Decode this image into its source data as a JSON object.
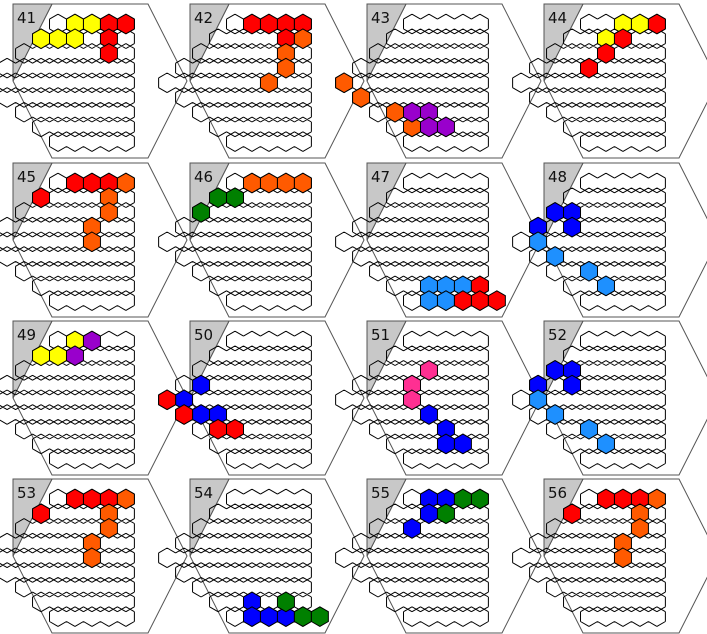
{
  "colors": {
    "red": "#ff0000",
    "orange": "#ff5a00",
    "yellow": "#ffff00",
    "purple": "#9900cc",
    "blue": "#0000ff",
    "lightblue": "#1e90ff",
    "green": "#008000",
    "pink": "#ff2f92",
    "corner": "#c8c8c8"
  },
  "puzzles": [
    {
      "number": "41",
      "pieces": [
        {
          "color": "yellow",
          "cells": [
            [
              0,
              1
            ],
            [
              0,
              2
            ],
            [
              1,
              0
            ],
            [
              1,
              1
            ],
            [
              1,
              2
            ]
          ]
        },
        {
          "color": "red",
          "cells": [
            [
              0,
              3
            ],
            [
              0,
              4
            ],
            [
              1,
              4
            ],
            [
              2,
              5
            ]
          ]
        }
      ]
    },
    {
      "number": "42",
      "pieces": [
        {
          "color": "red",
          "cells": [
            [
              0,
              1
            ],
            [
              0,
              2
            ],
            [
              0,
              3
            ],
            [
              0,
              4
            ],
            [
              1,
              4
            ]
          ]
        },
        {
          "color": "orange",
          "cells": [
            [
              1,
              5
            ],
            [
              2,
              5
            ],
            [
              3,
              6
            ],
            [
              4,
              6
            ]
          ]
        }
      ]
    },
    {
      "number": "43",
      "pieces": [
        {
          "color": "orange",
          "cells": [
            [
              4,
              0
            ],
            [
              5,
              0
            ],
            [
              6,
              1
            ],
            [
              7,
              1
            ]
          ]
        },
        {
          "color": "purple",
          "cells": [
            [
              6,
              2
            ],
            [
              6,
              3
            ],
            [
              7,
              2
            ],
            [
              7,
              3
            ]
          ]
        }
      ]
    },
    {
      "number": "44",
      "pieces": [
        {
          "color": "yellow",
          "cells": [
            [
              0,
              2
            ],
            [
              0,
              3
            ],
            [
              1,
              2
            ]
          ]
        },
        {
          "color": "red",
          "cells": [
            [
              0,
              4
            ],
            [
              1,
              3
            ],
            [
              2,
              3
            ],
            [
              3,
              3
            ]
          ]
        }
      ]
    },
    {
      "number": "45",
      "pieces": [
        {
          "color": "red",
          "cells": [
            [
              0,
              1
            ],
            [
              0,
              2
            ],
            [
              0,
              3
            ],
            [
              1,
              0
            ]
          ]
        },
        {
          "color": "orange",
          "cells": [
            [
              0,
              4
            ],
            [
              1,
              4
            ],
            [
              2,
              5
            ],
            [
              3,
              5
            ],
            [
              4,
              6
            ]
          ]
        }
      ]
    },
    {
      "number": "46",
      "pieces": [
        {
          "color": "orange",
          "cells": [
            [
              0,
              1
            ],
            [
              0,
              2
            ],
            [
              0,
              3
            ],
            [
              0,
              4
            ]
          ]
        },
        {
          "color": "green",
          "cells": [
            [
              1,
              0
            ],
            [
              1,
              1
            ],
            [
              2,
              0
            ]
          ]
        }
      ]
    },
    {
      "number": "47",
      "pieces": [
        {
          "color": "lightblue",
          "cells": [
            [
              7,
              2
            ],
            [
              7,
              3
            ],
            [
              7,
              4
            ],
            [
              8,
              1
            ],
            [
              8,
              2
            ]
          ]
        },
        {
          "color": "red",
          "cells": [
            [
              7,
              5
            ],
            [
              8,
              3
            ],
            [
              8,
              4
            ],
            [
              8,
              5
            ]
          ]
        }
      ]
    },
    {
      "number": "48",
      "pieces": [
        {
          "color": "blue",
          "cells": [
            [
              2,
              0
            ],
            [
              2,
              1
            ],
            [
              3,
              0
            ],
            [
              3,
              2
            ]
          ]
        },
        {
          "color": "lightblue",
          "cells": [
            [
              4,
              1
            ],
            [
              5,
              1
            ],
            [
              6,
              2
            ],
            [
              7,
              2
            ]
          ]
        }
      ]
    },
    {
      "number": "49",
      "pieces": [
        {
          "color": "yellow",
          "cells": [
            [
              0,
              1
            ],
            [
              1,
              0
            ],
            [
              1,
              1
            ]
          ]
        },
        {
          "color": "purple",
          "cells": [
            [
              0,
              2
            ],
            [
              1,
              2
            ]
          ]
        }
      ]
    },
    {
      "number": "50",
      "pieces": [
        {
          "color": "blue",
          "cells": [
            [
              3,
              1
            ],
            [
              4,
              1
            ],
            [
              5,
              1
            ],
            [
              5,
              2
            ]
          ]
        },
        {
          "color": "red",
          "cells": [
            [
              4,
              0
            ],
            [
              5,
              0
            ],
            [
              6,
              1
            ],
            [
              6,
              2
            ]
          ]
        }
      ]
    },
    {
      "number": "51",
      "pieces": [
        {
          "color": "pink",
          "cells": [
            [
              2,
              3
            ],
            [
              3,
              3
            ],
            [
              4,
              4
            ]
          ]
        },
        {
          "color": "blue",
          "cells": [
            [
              5,
              4
            ],
            [
              6,
              4
            ],
            [
              7,
              3
            ],
            [
              7,
              4
            ]
          ]
        }
      ]
    },
    {
      "number": "52",
      "pieces": [
        {
          "color": "blue",
          "cells": [
            [
              2,
              0
            ],
            [
              2,
              1
            ],
            [
              3,
              0
            ],
            [
              3,
              2
            ]
          ]
        },
        {
          "color": "lightblue",
          "cells": [
            [
              4,
              1
            ],
            [
              5,
              1
            ],
            [
              6,
              2
            ],
            [
              7,
              2
            ]
          ]
        }
      ]
    },
    {
      "number": "53",
      "pieces": [
        {
          "color": "red",
          "cells": [
            [
              0,
              1
            ],
            [
              0,
              2
            ],
            [
              0,
              3
            ],
            [
              1,
              0
            ]
          ]
        },
        {
          "color": "orange",
          "cells": [
            [
              0,
              4
            ],
            [
              1,
              4
            ],
            [
              2,
              5
            ],
            [
              3,
              5
            ],
            [
              4,
              6
            ]
          ]
        }
      ]
    },
    {
      "number": "54",
      "pieces": [
        {
          "color": "blue",
          "cells": [
            [
              7,
              2
            ],
            [
              8,
              1
            ],
            [
              8,
              2
            ],
            [
              8,
              3
            ]
          ]
        },
        {
          "color": "green",
          "cells": [
            [
              7,
              4
            ],
            [
              8,
              4
            ],
            [
              8,
              5
            ]
          ]
        }
      ]
    },
    {
      "number": "55",
      "pieces": [
        {
          "color": "blue",
          "cells": [
            [
              0,
              1
            ],
            [
              0,
              2
            ],
            [
              1,
              2
            ],
            [
              2,
              2
            ]
          ]
        },
        {
          "color": "green",
          "cells": [
            [
              0,
              3
            ],
            [
              0,
              4
            ],
            [
              1,
              3
            ]
          ]
        }
      ]
    },
    {
      "number": "56",
      "pieces": [
        {
          "color": "red",
          "cells": [
            [
              0,
              1
            ],
            [
              0,
              2
            ],
            [
              0,
              3
            ],
            [
              1,
              0
            ]
          ]
        },
        {
          "color": "orange",
          "cells": [
            [
              0,
              4
            ],
            [
              1,
              4
            ],
            [
              2,
              5
            ],
            [
              3,
              5
            ],
            [
              4,
              6
            ]
          ]
        }
      ]
    }
  ]
}
